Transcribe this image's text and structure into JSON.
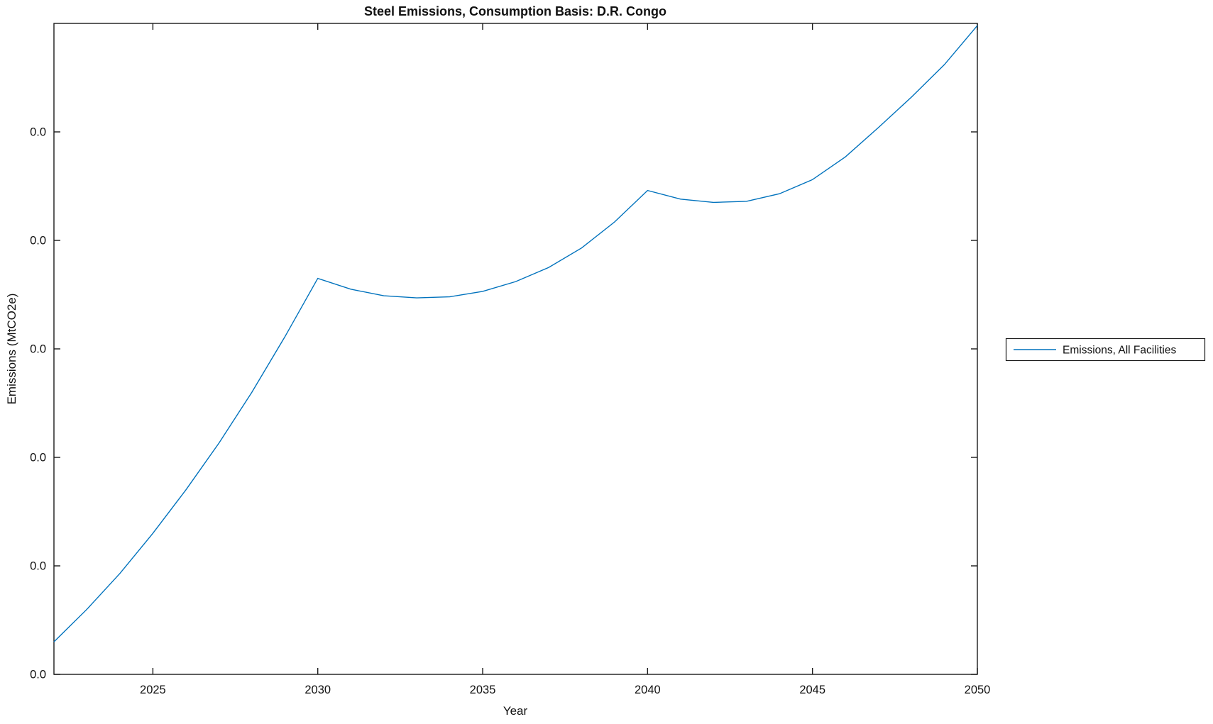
{
  "figure": {
    "background": "#ffffff",
    "axis_color": "#1a1a1a",
    "title": "Steel Emissions, Consumption Basis: D.R. Congo",
    "xlabel": "Year",
    "ylabel": "Emissions (MtCO2e)",
    "legend": {
      "position": "right-outside",
      "entries": [
        {
          "label": "Emissions, All Facilities",
          "line_color": "#0072BD"
        }
      ]
    }
  },
  "chart_data": {
    "type": "line",
    "title": "Steel Emissions, Consumption Basis: D.R. Congo",
    "xlabel": "Year",
    "ylabel": "Emissions (MtCO2e)",
    "grid": false,
    "boxed_axes": true,
    "ticks_direction": "in",
    "legend_position": "eastoutside",
    "xlim": [
      2022,
      2050
    ],
    "x_tick_values": [
      2025,
      2030,
      2035,
      2040,
      2045,
      2050
    ],
    "x_tick_labels": [
      "2025",
      "2030",
      "2035",
      "2040",
      "2045",
      "2050"
    ],
    "y_tick_labels": [
      "0.0",
      "0.0",
      "0.0",
      "0.0",
      "0.0",
      "0.0"
    ],
    "y_units_note": "all visible y tick labels read 0.0; series values below are in relative axis units, 1 unit = one tick interval, axis spans 0 to 6 units",
    "ylim_units": [
      0,
      6
    ],
    "series": [
      {
        "name": "Emissions, All Facilities",
        "color": "#0072BD",
        "x": [
          2022,
          2023,
          2024,
          2025,
          2026,
          2027,
          2028,
          2029,
          2030,
          2031,
          2032,
          2033,
          2034,
          2035,
          2036,
          2037,
          2038,
          2039,
          2040,
          2041,
          2042,
          2043,
          2044,
          2045,
          2046,
          2047,
          2048,
          2049,
          2050
        ],
        "y": [
          0.3,
          0.6,
          0.93,
          1.3,
          1.7,
          2.13,
          2.6,
          3.11,
          3.65,
          3.55,
          3.49,
          3.47,
          3.48,
          3.53,
          3.62,
          3.75,
          3.93,
          4.17,
          4.46,
          4.38,
          4.35,
          4.36,
          4.43,
          4.56,
          4.77,
          5.04,
          5.32,
          5.62,
          5.98
        ]
      }
    ]
  }
}
